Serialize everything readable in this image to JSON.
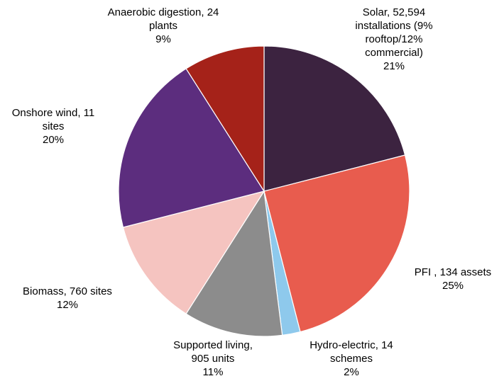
{
  "chart_data": {
    "type": "pie",
    "categories": [
      "Solar, 52,594 installations (9% rooftop/12% commercial)",
      "PFI , 134 assets",
      "Hydro-electric, 14 schemes",
      "Supported living, 905 units",
      "Biomass, 760 sites",
      "Onshore wind, 11 sites",
      "Anaerobic digestion, 24 plants"
    ],
    "values": [
      21,
      25,
      2,
      11,
      12,
      20,
      9
    ],
    "value_labels": [
      "21%",
      "25%",
      "2%",
      "11%",
      "12%",
      "20%",
      "9%"
    ],
    "colors": [
      "#3c2340",
      "#e85c4e",
      "#8ec9ec",
      "#8c8c8c",
      "#f5c4c0",
      "#5c2d7e",
      "#a52219"
    ]
  }
}
